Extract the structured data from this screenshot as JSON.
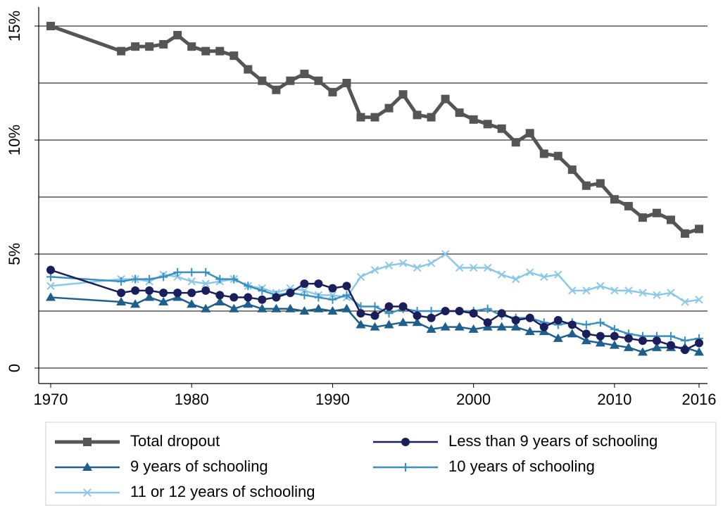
{
  "chart_data": {
    "type": "line",
    "x": [
      1970,
      1975,
      1976,
      1977,
      1978,
      1979,
      1980,
      1981,
      1982,
      1983,
      1984,
      1985,
      1986,
      1987,
      1988,
      1989,
      1990,
      1991,
      1992,
      1993,
      1994,
      1995,
      1996,
      1997,
      1998,
      1999,
      2000,
      2001,
      2002,
      2003,
      2004,
      2005,
      2006,
      2007,
      2008,
      2009,
      2010,
      2011,
      2012,
      2013,
      2014,
      2015,
      2016
    ],
    "xlim": [
      1970,
      2016
    ],
    "xticks": [
      1970,
      1980,
      1990,
      2000,
      2010,
      2016
    ],
    "ylim": [
      0,
      15
    ],
    "yticks": [
      0,
      {
        "value": 5,
        "label": "5%"
      },
      {
        "value": 10,
        "label": "10%"
      },
      {
        "value": 15,
        "label": "15%"
      }
    ],
    "ygrid": [
      0,
      2.5,
      5,
      7.5,
      10,
      12.5,
      15
    ],
    "grid": true,
    "legend": "bottom",
    "series": [
      {
        "name": "Total dropout",
        "color": "#555555",
        "marker": "square",
        "width": 5,
        "values": [
          15.0,
          13.9,
          14.1,
          14.1,
          14.2,
          14.6,
          14.1,
          13.9,
          13.9,
          13.7,
          13.1,
          12.6,
          12.2,
          12.6,
          12.9,
          12.6,
          12.1,
          12.5,
          11.0,
          11.0,
          11.4,
          12.0,
          11.1,
          11.0,
          11.8,
          11.2,
          10.9,
          10.7,
          10.5,
          9.9,
          10.3,
          9.4,
          9.3,
          8.7,
          8.0,
          8.1,
          7.4,
          7.1,
          6.6,
          6.8,
          6.5,
          5.9,
          6.1
        ]
      },
      {
        "name": "Less than 9 years of schooling",
        "color": "#1a1f5c",
        "marker": "circle",
        "width": 2.5,
        "values": [
          4.3,
          3.3,
          3.4,
          3.4,
          3.3,
          3.3,
          3.3,
          3.4,
          3.2,
          3.1,
          3.1,
          3.0,
          3.1,
          3.3,
          3.7,
          3.7,
          3.5,
          3.6,
          2.4,
          2.3,
          2.7,
          2.7,
          2.3,
          2.2,
          2.5,
          2.5,
          2.4,
          2.0,
          2.4,
          2.1,
          2.2,
          1.8,
          2.1,
          1.9,
          1.5,
          1.4,
          1.4,
          1.3,
          1.2,
          1.2,
          1.0,
          0.8,
          1.1
        ]
      },
      {
        "name": "9 years of schooling",
        "color": "#1f5f8b",
        "marker": "triangle",
        "width": 2.5,
        "values": [
          3.1,
          2.9,
          2.8,
          3.1,
          2.9,
          3.1,
          2.8,
          2.6,
          2.9,
          2.6,
          2.8,
          2.6,
          2.6,
          2.6,
          2.5,
          2.6,
          2.5,
          2.6,
          1.9,
          1.8,
          1.9,
          2.0,
          2.0,
          1.7,
          1.8,
          1.8,
          1.7,
          1.8,
          1.8,
          1.8,
          1.6,
          1.6,
          1.3,
          1.5,
          1.2,
          1.1,
          1.0,
          0.9,
          0.7,
          0.9,
          0.9,
          0.9,
          0.7
        ]
      },
      {
        "name": "10 years of schooling",
        "color": "#3b8fbf",
        "marker": "plus",
        "width": 2.5,
        "values": [
          4.0,
          3.8,
          3.9,
          3.9,
          4.0,
          4.2,
          4.2,
          4.2,
          3.9,
          3.9,
          3.6,
          3.4,
          3.2,
          3.3,
          3.2,
          3.1,
          3.0,
          3.2,
          2.7,
          2.7,
          2.4,
          2.6,
          2.5,
          2.5,
          2.5,
          2.5,
          2.5,
          2.6,
          2.3,
          2.2,
          2.2,
          2.0,
          1.9,
          2.0,
          1.9,
          2.0,
          1.7,
          1.5,
          1.4,
          1.4,
          1.4,
          1.2,
          1.3
        ]
      },
      {
        "name": "11 or 12 years of schooling",
        "color": "#8cc8e6",
        "marker": "x",
        "width": 2.5,
        "values": [
          3.6,
          3.9,
          3.9,
          3.8,
          4.1,
          4.0,
          3.8,
          3.7,
          3.8,
          3.9,
          3.6,
          3.5,
          3.3,
          3.5,
          3.4,
          3.2,
          3.2,
          3.1,
          4.0,
          4.3,
          4.5,
          4.6,
          4.4,
          4.6,
          5.0,
          4.4,
          4.4,
          4.4,
          4.1,
          3.9,
          4.2,
          4.0,
          4.1,
          3.4,
          3.4,
          3.6,
          3.4,
          3.4,
          3.3,
          3.2,
          3.3,
          2.9,
          3.0
        ]
      }
    ]
  }
}
